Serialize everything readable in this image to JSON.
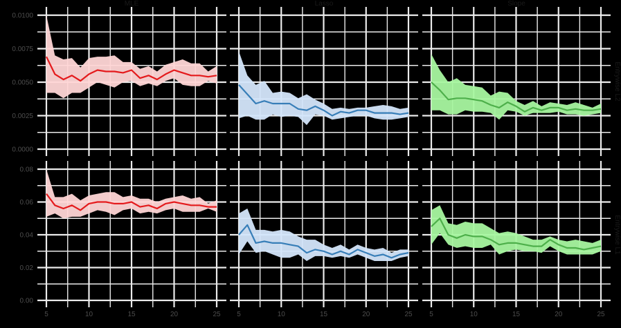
{
  "chart_data": {
    "type": "line",
    "layout": "facet_grid 2 rows x 3 columns, free y per row, ribbon + line",
    "background": "#000000",
    "grid": true,
    "columns": [
      "MLE",
      "Lasso",
      "Slope"
    ],
    "rows": [
      "Entrywise L2",
      "Entrywise L1"
    ],
    "x": [
      5,
      6,
      7,
      8,
      9,
      10,
      11,
      12,
      13,
      14,
      15,
      16,
      17,
      18,
      19,
      20,
      21,
      22,
      23,
      24,
      25
    ],
    "x_ticks": [
      5,
      10,
      15,
      20,
      25
    ],
    "xlim": [
      5,
      25
    ],
    "row_axes": [
      {
        "row": "Entrywise L2",
        "ylim": [
          0,
          0.01
        ],
        "y_ticks": [
          0.0,
          0.0025,
          0.005,
          0.0075,
          0.01
        ],
        "y_tick_labels": [
          "0.0000",
          "0.0025",
          "0.0050",
          "0.0075",
          "0.0100"
        ]
      },
      {
        "row": "Entrywise L1",
        "ylim": [
          0,
          0.08
        ],
        "y_ticks": [
          0.0,
          0.02,
          0.04,
          0.06,
          0.08
        ],
        "y_tick_labels": [
          "0.00",
          "0.02",
          "0.04",
          "0.06",
          "0.08"
        ]
      }
    ],
    "colors": {
      "MLE": {
        "line": "#e41a1c",
        "ribbon": "#ffd6d6"
      },
      "Lasso": {
        "line": "#377eb8",
        "ribbon": "#d4e6fb"
      },
      "Slope": {
        "line": "#4daf4a",
        "ribbon": "#a8f7a0"
      }
    },
    "panels": [
      {
        "row": 0,
        "col": 0,
        "method": "MLE",
        "metric": "Entrywise L2",
        "mean": [
          0.0069,
          0.0056,
          0.0052,
          0.0055,
          0.0051,
          0.0056,
          0.0059,
          0.0058,
          0.0058,
          0.0057,
          0.0059,
          0.0053,
          0.0055,
          0.0052,
          0.0056,
          0.0059,
          0.0057,
          0.0055,
          0.0055,
          0.0054,
          0.0055
        ],
        "lower": [
          0.0042,
          0.0042,
          0.0038,
          0.0042,
          0.0042,
          0.0046,
          0.005,
          0.0048,
          0.0046,
          0.005,
          0.0051,
          0.0047,
          0.0049,
          0.0047,
          0.0051,
          0.0053,
          0.0048,
          0.0047,
          0.0047,
          0.0051,
          0.0049
        ],
        "upper": [
          0.01,
          0.007,
          0.0067,
          0.0068,
          0.0061,
          0.0068,
          0.0069,
          0.0069,
          0.007,
          0.0065,
          0.0065,
          0.006,
          0.0062,
          0.0058,
          0.0063,
          0.0065,
          0.0067,
          0.0064,
          0.0064,
          0.0058,
          0.0062
        ]
      },
      {
        "row": 0,
        "col": 1,
        "method": "Lasso",
        "metric": "Entrywise L2",
        "mean": [
          0.0048,
          0.0041,
          0.0034,
          0.0036,
          0.0034,
          0.0034,
          0.0034,
          0.003,
          0.0029,
          0.0032,
          0.0029,
          0.0025,
          0.0028,
          0.0027,
          0.0029,
          0.0029,
          0.0027,
          0.0027,
          0.0027,
          0.0026,
          0.0027
        ],
        "lower": [
          0.0023,
          0.0025,
          0.0022,
          0.0022,
          0.0026,
          0.0024,
          0.0025,
          0.0024,
          0.0018,
          0.0026,
          0.0025,
          0.0022,
          0.0023,
          0.0024,
          0.0025,
          0.0025,
          0.0023,
          0.0022,
          0.0022,
          0.0023,
          0.0024
        ],
        "upper": [
          0.0073,
          0.0055,
          0.0048,
          0.0051,
          0.0042,
          0.0043,
          0.0042,
          0.0038,
          0.0041,
          0.0037,
          0.0034,
          0.003,
          0.0031,
          0.003,
          0.0031,
          0.0031,
          0.0032,
          0.0033,
          0.0032,
          0.003,
          0.0031
        ]
      },
      {
        "row": 0,
        "col": 2,
        "method": "Slope",
        "metric": "Entrywise L2",
        "mean": [
          0.005,
          0.0044,
          0.0037,
          0.0038,
          0.0038,
          0.0037,
          0.0036,
          0.0033,
          0.0031,
          0.0035,
          0.0032,
          0.0028,
          0.0031,
          0.0029,
          0.0031,
          0.0031,
          0.0029,
          0.003,
          0.0029,
          0.0029,
          0.003
        ],
        "lower": [
          0.0029,
          0.0029,
          0.0026,
          0.0026,
          0.0029,
          0.0028,
          0.0028,
          0.0027,
          0.0022,
          0.0029,
          0.0028,
          0.0025,
          0.0027,
          0.0027,
          0.0027,
          0.0028,
          0.0026,
          0.0026,
          0.0025,
          0.0026,
          0.0027
        ],
        "upper": [
          0.0071,
          0.0059,
          0.005,
          0.0053,
          0.0048,
          0.0047,
          0.0046,
          0.004,
          0.0043,
          0.0042,
          0.0036,
          0.0033,
          0.0036,
          0.0032,
          0.0035,
          0.0034,
          0.0033,
          0.0035,
          0.0033,
          0.0031,
          0.0034
        ]
      },
      {
        "row": 1,
        "col": 0,
        "method": "MLE",
        "metric": "Entrywise L1",
        "mean": [
          0.065,
          0.058,
          0.056,
          0.058,
          0.055,
          0.059,
          0.06,
          0.06,
          0.059,
          0.059,
          0.06,
          0.057,
          0.058,
          0.056,
          0.059,
          0.06,
          0.059,
          0.058,
          0.058,
          0.057,
          0.057
        ],
        "lower": [
          0.051,
          0.053,
          0.05,
          0.051,
          0.051,
          0.053,
          0.055,
          0.054,
          0.052,
          0.055,
          0.056,
          0.053,
          0.054,
          0.053,
          0.055,
          0.056,
          0.054,
          0.054,
          0.054,
          0.056,
          0.054
        ],
        "upper": [
          0.08,
          0.063,
          0.063,
          0.065,
          0.061,
          0.064,
          0.065,
          0.066,
          0.066,
          0.063,
          0.064,
          0.062,
          0.062,
          0.06,
          0.062,
          0.063,
          0.064,
          0.062,
          0.063,
          0.059,
          0.061
        ]
      },
      {
        "row": 1,
        "col": 1,
        "method": "Lasso",
        "metric": "Entrywise L1",
        "mean": [
          0.04,
          0.046,
          0.035,
          0.036,
          0.035,
          0.035,
          0.034,
          0.033,
          0.029,
          0.031,
          0.03,
          0.028,
          0.03,
          0.028,
          0.031,
          0.029,
          0.027,
          0.028,
          0.026,
          0.028,
          0.029
        ],
        "lower": [
          0.028,
          0.036,
          0.029,
          0.03,
          0.028,
          0.026,
          0.026,
          0.028,
          0.024,
          0.027,
          0.027,
          0.026,
          0.027,
          0.026,
          0.028,
          0.026,
          0.024,
          0.024,
          0.024,
          0.026,
          0.027
        ],
        "upper": [
          0.053,
          0.056,
          0.043,
          0.043,
          0.042,
          0.043,
          0.042,
          0.039,
          0.037,
          0.037,
          0.034,
          0.032,
          0.034,
          0.031,
          0.034,
          0.032,
          0.031,
          0.032,
          0.029,
          0.031,
          0.031
        ]
      },
      {
        "row": 1,
        "col": 2,
        "method": "Slope",
        "metric": "Entrywise L1",
        "mean": [
          0.045,
          0.05,
          0.04,
          0.038,
          0.04,
          0.039,
          0.039,
          0.037,
          0.034,
          0.035,
          0.035,
          0.034,
          0.033,
          0.033,
          0.037,
          0.034,
          0.032,
          0.032,
          0.031,
          0.032,
          0.033
        ],
        "lower": [
          0.034,
          0.041,
          0.034,
          0.032,
          0.033,
          0.032,
          0.032,
          0.034,
          0.028,
          0.03,
          0.031,
          0.03,
          0.03,
          0.029,
          0.033,
          0.03,
          0.028,
          0.028,
          0.028,
          0.028,
          0.03
        ],
        "upper": [
          0.055,
          0.058,
          0.047,
          0.046,
          0.048,
          0.047,
          0.047,
          0.044,
          0.041,
          0.042,
          0.041,
          0.039,
          0.037,
          0.037,
          0.039,
          0.037,
          0.036,
          0.037,
          0.036,
          0.035,
          0.037
        ]
      }
    ],
    "title": "",
    "xlabel": "",
    "ylabel": "",
    "legend": "none"
  }
}
